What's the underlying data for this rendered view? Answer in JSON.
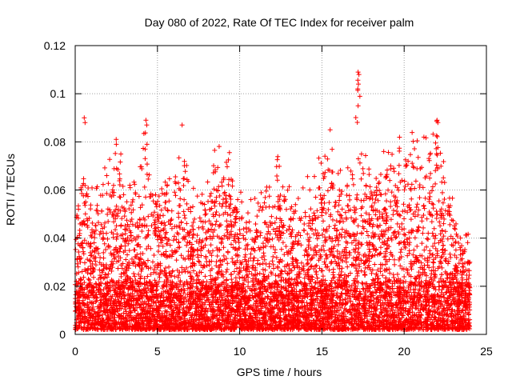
{
  "chart_data": {
    "type": "scatter",
    "title": "Day 080 of 2022, Rate Of TEC Index for receiver palm",
    "xlabel": "GPS time / hours",
    "ylabel": "ROTI / TECUs",
    "xlim": [
      0,
      25
    ],
    "ylim": [
      0,
      0.12
    ],
    "x_ticks": [
      0,
      5,
      10,
      15,
      20,
      25
    ],
    "y_ticks": [
      0,
      0.02,
      0.04,
      0.06,
      0.08,
      0.1,
      0.12
    ],
    "x_tick_labels": [
      "0",
      "5",
      "10",
      "15",
      "20",
      "25"
    ],
    "y_tick_labels": [
      "0",
      "0.02",
      "0.04",
      "0.06",
      "0.08",
      "0.1",
      "0.12"
    ],
    "grid": true,
    "marker": "+",
    "series_color": "#ff0000",
    "data_range": {
      "x_min": 0,
      "x_max": 24,
      "y_min": 0.002
    },
    "envelope": [
      [
        0.0,
        0.048
      ],
      [
        0.5,
        0.068
      ],
      [
        0.6,
        0.09
      ],
      [
        1.0,
        0.065
      ],
      [
        1.5,
        0.06
      ],
      [
        2.0,
        0.068
      ],
      [
        2.5,
        0.079
      ],
      [
        3.0,
        0.066
      ],
      [
        3.5,
        0.063
      ],
      [
        4.0,
        0.066
      ],
      [
        4.3,
        0.089
      ],
      [
        4.6,
        0.06
      ],
      [
        5.0,
        0.065
      ],
      [
        5.5,
        0.06
      ],
      [
        6.0,
        0.06
      ],
      [
        6.5,
        0.087
      ],
      [
        7.0,
        0.062
      ],
      [
        7.5,
        0.055
      ],
      [
        8.0,
        0.063
      ],
      [
        8.5,
        0.078
      ],
      [
        9.0,
        0.073
      ],
      [
        9.5,
        0.074
      ],
      [
        10.0,
        0.062
      ],
      [
        10.5,
        0.052
      ],
      [
        11.0,
        0.055
      ],
      [
        11.5,
        0.06
      ],
      [
        12.0,
        0.06
      ],
      [
        12.3,
        0.072
      ],
      [
        12.7,
        0.062
      ],
      [
        13.0,
        0.06
      ],
      [
        13.5,
        0.06
      ],
      [
        14.0,
        0.06
      ],
      [
        14.5,
        0.065
      ],
      [
        15.0,
        0.07
      ],
      [
        15.5,
        0.086
      ],
      [
        16.0,
        0.066
      ],
      [
        16.5,
        0.07
      ],
      [
        17.0,
        0.077
      ],
      [
        17.2,
        0.109
      ],
      [
        17.5,
        0.075
      ],
      [
        18.0,
        0.07
      ],
      [
        18.5,
        0.065
      ],
      [
        19.0,
        0.075
      ],
      [
        19.5,
        0.075
      ],
      [
        20.0,
        0.077
      ],
      [
        20.5,
        0.08
      ],
      [
        21.0,
        0.085
      ],
      [
        21.5,
        0.07
      ],
      [
        22.0,
        0.089
      ],
      [
        22.5,
        0.066
      ],
      [
        23.0,
        0.055
      ],
      [
        23.5,
        0.045
      ],
      [
        24.0,
        0.042
      ]
    ],
    "notable_points": [
      {
        "x": 17.2,
        "y": 0.109
      },
      {
        "x": 17.25,
        "y": 0.108
      },
      {
        "x": 17.22,
        "y": 0.104
      },
      {
        "x": 17.18,
        "y": 0.102
      },
      {
        "x": 17.2,
        "y": 0.095
      },
      {
        "x": 0.55,
        "y": 0.09
      },
      {
        "x": 0.6,
        "y": 0.088
      },
      {
        "x": 4.3,
        "y": 0.089
      },
      {
        "x": 4.35,
        "y": 0.087
      },
      {
        "x": 6.5,
        "y": 0.087
      },
      {
        "x": 15.5,
        "y": 0.085
      },
      {
        "x": 22.0,
        "y": 0.089
      },
      {
        "x": 22.05,
        "y": 0.088
      },
      {
        "x": 21.2,
        "y": 0.082
      },
      {
        "x": 2.5,
        "y": 0.079
      }
    ]
  }
}
